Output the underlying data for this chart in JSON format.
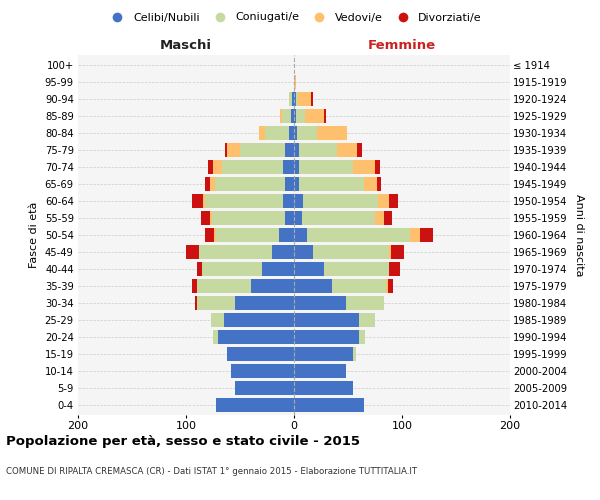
{
  "age_groups": [
    "0-4",
    "5-9",
    "10-14",
    "15-19",
    "20-24",
    "25-29",
    "30-34",
    "35-39",
    "40-44",
    "45-49",
    "50-54",
    "55-59",
    "60-64",
    "65-69",
    "70-74",
    "75-79",
    "80-84",
    "85-89",
    "90-94",
    "95-99",
    "100+"
  ],
  "birth_years": [
    "2010-2014",
    "2005-2009",
    "2000-2004",
    "1995-1999",
    "1990-1994",
    "1985-1989",
    "1980-1984",
    "1975-1979",
    "1970-1974",
    "1965-1969",
    "1960-1964",
    "1955-1959",
    "1950-1954",
    "1945-1949",
    "1940-1944",
    "1935-1939",
    "1930-1934",
    "1925-1929",
    "1920-1924",
    "1915-1919",
    "≤ 1914"
  ],
  "maschi": {
    "celibi": [
      72,
      55,
      58,
      62,
      70,
      65,
      55,
      40,
      30,
      20,
      14,
      8,
      10,
      8,
      10,
      8,
      5,
      3,
      2,
      0,
      0
    ],
    "coniugati": [
      0,
      0,
      0,
      0,
      5,
      12,
      35,
      50,
      55,
      68,
      58,
      68,
      72,
      65,
      57,
      42,
      22,
      8,
      3,
      0,
      0
    ],
    "vedovi": [
      0,
      0,
      0,
      0,
      0,
      0,
      0,
      0,
      0,
      0,
      2,
      2,
      2,
      5,
      8,
      12,
      5,
      2,
      0,
      0,
      0
    ],
    "divorziati": [
      0,
      0,
      0,
      0,
      0,
      0,
      2,
      4,
      5,
      12,
      8,
      8,
      10,
      4,
      5,
      2,
      0,
      0,
      0,
      0,
      0
    ]
  },
  "femmine": {
    "nubili": [
      65,
      55,
      48,
      55,
      60,
      60,
      48,
      35,
      28,
      18,
      12,
      7,
      8,
      5,
      5,
      5,
      3,
      2,
      2,
      0,
      0
    ],
    "coniugate": [
      0,
      0,
      0,
      2,
      6,
      15,
      35,
      50,
      60,
      70,
      95,
      68,
      70,
      60,
      50,
      35,
      18,
      8,
      2,
      0,
      0
    ],
    "vedove": [
      0,
      0,
      0,
      0,
      0,
      0,
      0,
      2,
      0,
      2,
      10,
      8,
      10,
      12,
      20,
      18,
      28,
      18,
      12,
      2,
      0
    ],
    "divorziate": [
      0,
      0,
      0,
      0,
      0,
      0,
      0,
      5,
      10,
      12,
      12,
      8,
      8,
      4,
      5,
      5,
      0,
      2,
      2,
      0,
      0
    ]
  },
  "colors": {
    "celibi": "#4472c4",
    "coniugati": "#c5d9a0",
    "vedovi": "#ffc06e",
    "divorziati": "#cc1111"
  },
  "xlim": 200,
  "title": "Popolazione per età, sesso e stato civile - 2015",
  "subtitle": "COMUNE DI RIPALTA CREMASCA (CR) - Dati ISTAT 1° gennaio 2015 - Elaborazione TUTTITALIA.IT",
  "ylabel_left": "Fasce di età",
  "ylabel_right": "Anni di nascita",
  "xlabel_left": "Maschi",
  "xlabel_right": "Femmine",
  "bg_color": "#f5f5f5"
}
